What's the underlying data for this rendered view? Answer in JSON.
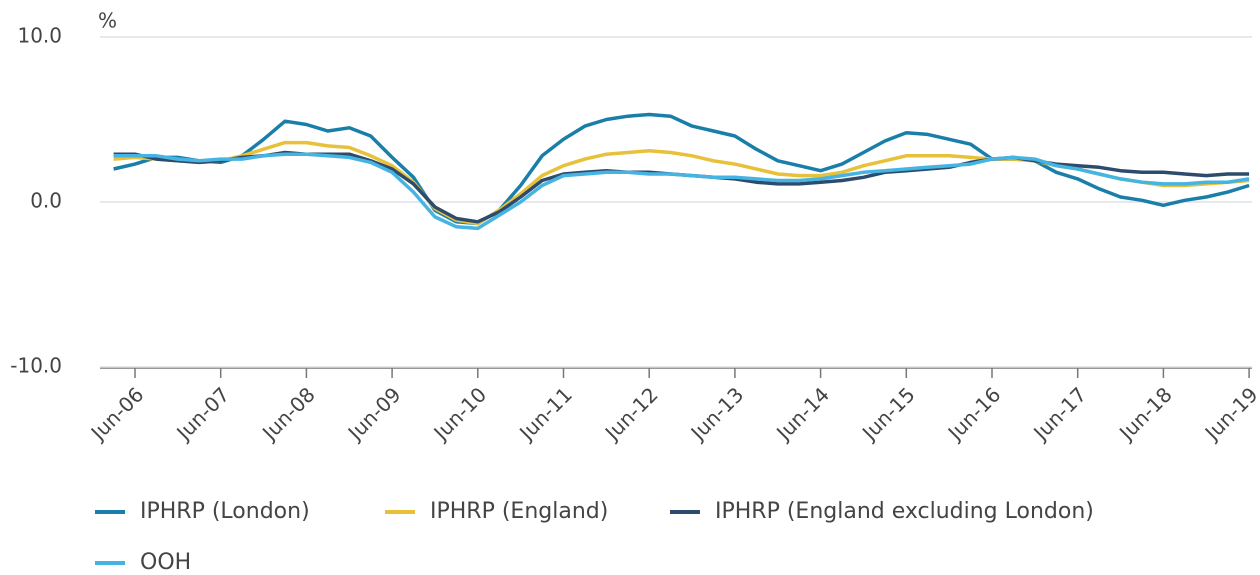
{
  "chart_data": {
    "type": "line",
    "y_label": "%",
    "categories": [
      null,
      "Jun-06",
      null,
      null,
      null,
      "Jun-07",
      null,
      null,
      null,
      "Jun-08",
      null,
      null,
      null,
      "Jun-09",
      null,
      null,
      null,
      "Jun-10",
      null,
      null,
      null,
      "Jun-11",
      null,
      null,
      null,
      "Jun-12",
      null,
      null,
      null,
      "Jun-13",
      null,
      null,
      null,
      "Jun-14",
      null,
      null,
      null,
      "Jun-15",
      null,
      null,
      null,
      "Jun-16",
      null,
      null,
      null,
      "Jun-17",
      null,
      null,
      null,
      "Jun-18",
      null,
      null,
      null,
      "Jun-19"
    ],
    "series": [
      {
        "name": "IPHRP (London)",
        "color": "#1a7fa8",
        "values": [
          2.0,
          2.3,
          2.7,
          2.7,
          2.5,
          2.4,
          2.8,
          3.8,
          4.9,
          4.7,
          4.3,
          4.5,
          4.0,
          2.7,
          1.5,
          -0.5,
          -1.2,
          -1.3,
          -0.5,
          1.0,
          2.8,
          3.8,
          4.6,
          5.0,
          5.2,
          5.3,
          5.2,
          4.6,
          4.3,
          4.0,
          3.2,
          2.5,
          2.2,
          1.9,
          2.3,
          3.0,
          3.7,
          4.2,
          4.1,
          3.8,
          3.5,
          2.6,
          2.6,
          2.5,
          1.8,
          1.4,
          0.8,
          0.3,
          0.1,
          -0.2,
          0.1,
          0.3,
          0.6,
          1.0
        ]
      },
      {
        "name": "IPHRP (England)",
        "color": "#e8c13a",
        "values": [
          2.6,
          2.7,
          2.6,
          2.5,
          2.4,
          2.5,
          2.8,
          3.2,
          3.6,
          3.6,
          3.4,
          3.3,
          2.8,
          2.2,
          1.2,
          -0.4,
          -1.1,
          -1.3,
          -0.5,
          0.5,
          1.6,
          2.2,
          2.6,
          2.9,
          3.0,
          3.1,
          3.0,
          2.8,
          2.5,
          2.3,
          2.0,
          1.7,
          1.6,
          1.6,
          1.8,
          2.2,
          2.5,
          2.8,
          2.8,
          2.8,
          2.7,
          2.6,
          2.6,
          2.5,
          2.2,
          2.0,
          1.7,
          1.4,
          1.2,
          1.0,
          1.0,
          1.1,
          1.2,
          1.3
        ]
      },
      {
        "name": "IPHRP (England excluding London)",
        "color": "#2d4b6c",
        "values": [
          2.9,
          2.9,
          2.6,
          2.5,
          2.4,
          2.5,
          2.7,
          2.8,
          3.0,
          2.9,
          2.9,
          2.9,
          2.5,
          2.0,
          1.1,
          -0.3,
          -1.0,
          -1.2,
          -0.6,
          0.3,
          1.3,
          1.7,
          1.8,
          1.9,
          1.8,
          1.8,
          1.7,
          1.6,
          1.5,
          1.4,
          1.2,
          1.1,
          1.1,
          1.2,
          1.3,
          1.5,
          1.8,
          1.9,
          2.0,
          2.1,
          2.4,
          2.6,
          2.7,
          2.5,
          2.3,
          2.2,
          2.1,
          1.9,
          1.8,
          1.8,
          1.7,
          1.6,
          1.7,
          1.7
        ]
      },
      {
        "name": "OOH",
        "color": "#45b4e2",
        "values": [
          2.8,
          2.8,
          2.8,
          2.6,
          2.5,
          2.6,
          2.6,
          2.8,
          2.9,
          2.9,
          2.8,
          2.7,
          2.4,
          1.8,
          0.6,
          -0.9,
          -1.5,
          -1.6,
          -0.8,
          0.0,
          1.0,
          1.6,
          1.7,
          1.8,
          1.8,
          1.7,
          1.7,
          1.6,
          1.5,
          1.5,
          1.4,
          1.3,
          1.3,
          1.4,
          1.6,
          1.8,
          1.9,
          2.0,
          2.1,
          2.2,
          2.3,
          2.6,
          2.7,
          2.6,
          2.2,
          2.0,
          1.7,
          1.4,
          1.2,
          1.1,
          1.1,
          1.2,
          1.2,
          1.4
        ]
      }
    ],
    "ylim": [
      -10,
      10
    ],
    "yticks": [
      {
        "value": -10,
        "label": "-10.0"
      },
      {
        "value": 0,
        "label": "0.0"
      },
      {
        "value": 10,
        "label": "10.0"
      }
    ],
    "grid": true,
    "legend": "bottom"
  }
}
